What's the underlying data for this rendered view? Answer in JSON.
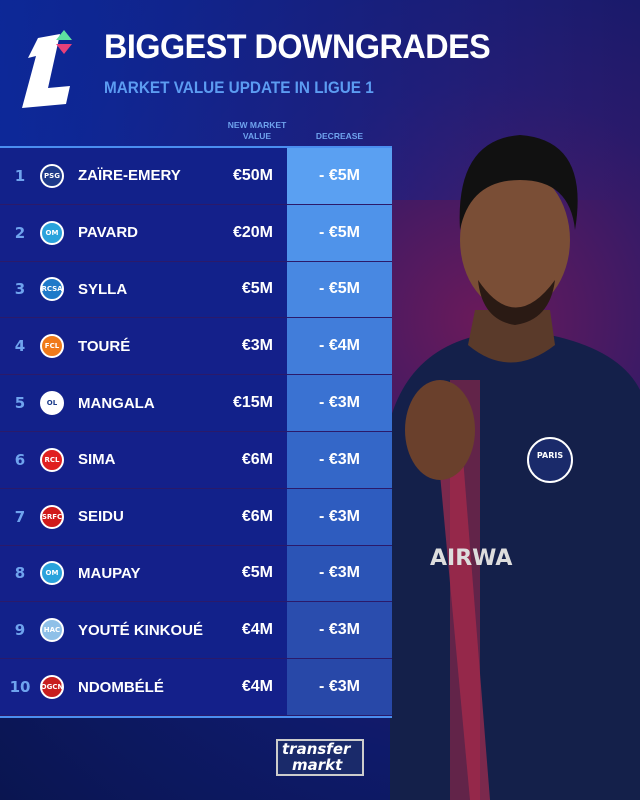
{
  "header": {
    "title": "BIGGEST DOWNGRADES",
    "subtitle": "MARKET VALUE UPDATE IN LIGUE 1"
  },
  "columns": {
    "value": "NEW MARKET VALUE",
    "decrease": "DECREASE"
  },
  "rows": [
    {
      "rank": "1",
      "club": "PSG",
      "name": "ZAÏRE-EMERY",
      "value": "€50M",
      "decrease": "- €5M",
      "badge": "#1e3a8a"
    },
    {
      "rank": "2",
      "club": "OM",
      "name": "PAVARD",
      "value": "€20M",
      "decrease": "- €5M",
      "badge": "#2aa3dc"
    },
    {
      "rank": "3",
      "club": "RCSA",
      "name": "SYLLA",
      "value": "€5M",
      "decrease": "- €5M",
      "badge": "#1f7ac9"
    },
    {
      "rank": "4",
      "club": "FCL",
      "name": "TOURÉ",
      "value": "€3M",
      "decrease": "- €4M",
      "badge": "#f07a1a"
    },
    {
      "rank": "5",
      "club": "OL",
      "name": "MANGALA",
      "value": "€15M",
      "decrease": "- €3M",
      "badge": "#ffffff"
    },
    {
      "rank": "6",
      "club": "RCL",
      "name": "SIMA",
      "value": "€6M",
      "decrease": "- €3M",
      "badge": "#e02020"
    },
    {
      "rank": "7",
      "club": "SRFC",
      "name": "SEIDU",
      "value": "€6M",
      "decrease": "- €3M",
      "badge": "#d01a1a"
    },
    {
      "rank": "8",
      "club": "OM",
      "name": "MAUPAY",
      "value": "€5M",
      "decrease": "- €3M",
      "badge": "#2aa3dc"
    },
    {
      "rank": "9",
      "club": "HAC",
      "name": "YOUTÉ KINKOUÉ",
      "value": "€4M",
      "decrease": "- €3M",
      "badge": "#8fc0e8"
    },
    {
      "rank": "10",
      "club": "OGCN",
      "name": "NDOMBÉLÉ",
      "value": "€4M",
      "decrease": "- €3M",
      "badge": "#c81e1e"
    }
  ],
  "decrease_colors": [
    "#5aa0f2",
    "#4f93ea",
    "#4888e2",
    "#417dda",
    "#3a72d2",
    "#3467c8",
    "#2e5cbf",
    "#2b54b6",
    "#2a4dae",
    "#2848a8"
  ],
  "player": {
    "shirt_text": "AIRWA",
    "crest": "PARIS"
  },
  "footer": {
    "brand_line1": "transfer",
    "brand_line2": "markt"
  }
}
